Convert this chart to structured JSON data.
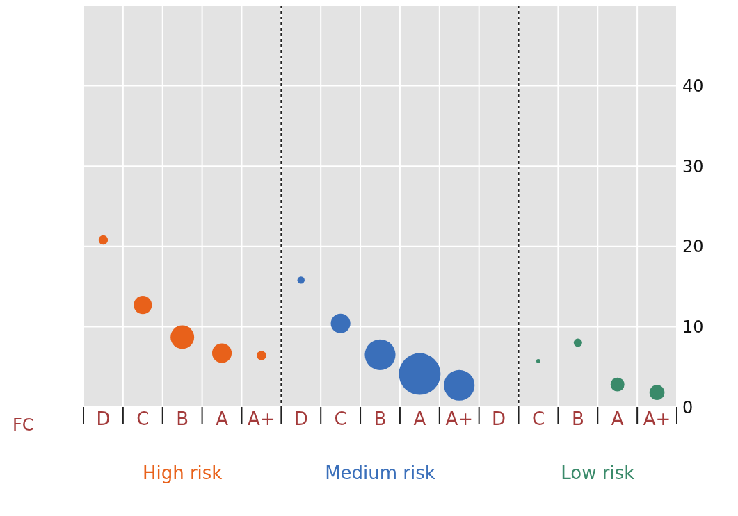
{
  "chart_data": {
    "type": "bubble",
    "xlabel": "FC",
    "categories": [
      "D",
      "C",
      "B",
      "A",
      "A+",
      "D",
      "C",
      "B",
      "A",
      "A+",
      "D",
      "C",
      "B",
      "A",
      "A+"
    ],
    "series": [
      {
        "name": "High risk",
        "color": "#e8611a",
        "values": [
          20.8,
          12.7,
          8.7,
          6.7,
          6.4,
          null,
          null,
          null,
          null,
          null,
          null,
          null,
          null,
          null,
          null
        ],
        "sizes": [
          0.05,
          0.19,
          0.32,
          0.22,
          0.05,
          null,
          null,
          null,
          null,
          null,
          null,
          null,
          null,
          null,
          null
        ]
      },
      {
        "name": "Medium risk",
        "color": "#3a6fba",
        "values": [
          null,
          null,
          null,
          null,
          null,
          15.8,
          10.4,
          6.5,
          4.1,
          2.7,
          null,
          null,
          null,
          null,
          null
        ],
        "sizes": [
          null,
          null,
          null,
          null,
          null,
          0.03,
          0.22,
          0.54,
          1,
          0.54,
          null,
          null,
          null,
          null,
          null
        ]
      },
      {
        "name": "Low risk",
        "color": "#3a8a6a",
        "values": [
          null,
          null,
          null,
          null,
          null,
          null,
          null,
          null,
          null,
          null,
          null,
          5.7,
          8.0,
          2.8,
          1.8
        ],
        "sizes": [
          null,
          null,
          null,
          null,
          null,
          null,
          null,
          null,
          null,
          null,
          null,
          0.01,
          0.04,
          0.11,
          0.13
        ]
      }
    ],
    "ylim": [
      0,
      50
    ],
    "yticks": [
      0,
      10,
      20,
      30,
      40
    ],
    "grid": true
  }
}
